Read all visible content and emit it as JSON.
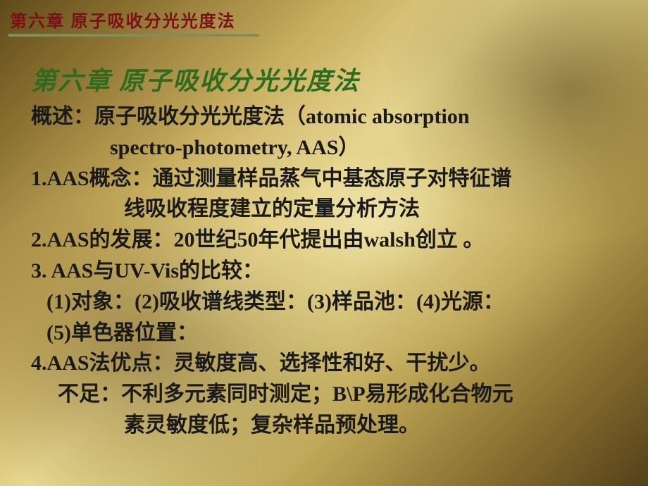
{
  "colors": {
    "header_text": "#7a1016",
    "hr": "#7e8f5e",
    "title_decor": "#2e6b1e",
    "body_text": "#1a1a1a"
  },
  "header": {
    "text": "第六章  原子吸收分光光度法"
  },
  "title": {
    "text": "第六章 原子吸收分光光度法"
  },
  "lines": {
    "overview1": "概述：原子吸收分光光度法（atomic absorption",
    "overview2": "spectro-photometry, AAS）",
    "p1a": "1.AAS概念：通过测量样品蒸气中基态原子对特征谱",
    "p1b": "线吸收程度建立的定量分析方法",
    "p2": "2.AAS的发展：20世纪50年代提出由walsh创立 。",
    "p3": "3. AAS与UV-Vis的比较：",
    "p3a": "(1)对象：(2)吸收谱线类型：(3)样品池：(4)光源：",
    "p3b": "(5)单色器位置：",
    "p4": "4.AAS法优点：灵敏度高、选择性和好、干扰少。",
    "p4a": "不足：不利多元素同时测定；B\\P易形成化合物元",
    "p4b": "素灵敏度低；复杂样品预处理。"
  },
  "typography": {
    "header_fontsize": 24,
    "title_fontsize": 36,
    "body_fontsize": 30,
    "body_line_height": 1.46
  }
}
